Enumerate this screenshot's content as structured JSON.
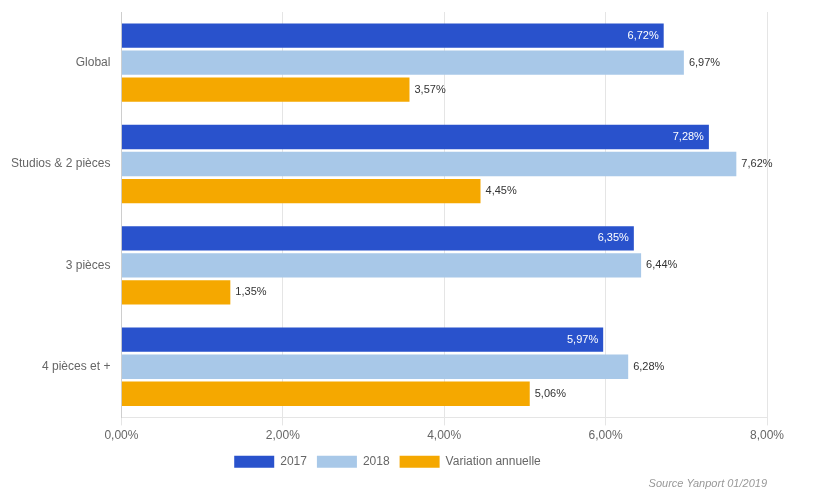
{
  "chart_data": {
    "type": "bar",
    "orientation": "horizontal",
    "categories": [
      "4 pièces et +",
      "3 pièces",
      "Studios & 2 pièces",
      "Global"
    ],
    "series": [
      {
        "name": "2017",
        "color": "#2952cc",
        "values": [
          5.97,
          6.35,
          7.28,
          6.72
        ],
        "value_labels": [
          "5,97%",
          "6,35%",
          "7,28%",
          "6,72%"
        ]
      },
      {
        "name": "2018",
        "color": "#a8c8e8",
        "values": [
          6.28,
          6.44,
          7.62,
          6.97
        ],
        "value_labels": [
          "6,28%",
          "6,44%",
          "7,62%",
          "6,97%"
        ]
      },
      {
        "name": "Variation annuelle",
        "color": "#f5a800",
        "values": [
          5.06,
          1.35,
          4.45,
          3.57
        ],
        "value_labels": [
          "5,06%",
          "1,35%",
          "4,45%",
          "3,57%"
        ]
      }
    ],
    "xlim": [
      0,
      8.0
    ],
    "xticks": [
      {
        "value": 0,
        "label": "0,00%"
      },
      {
        "value": 2.0,
        "label": "2,00%"
      },
      {
        "value": 4.0,
        "label": "4,00%"
      },
      {
        "value": 6.0,
        "label": "6,00%"
      },
      {
        "value": 8.0,
        "label": "8,00%"
      }
    ],
    "grid": true,
    "legend": "bottom",
    "data_labels": true,
    "annotations": [
      "Source Yanport 01/2019"
    ]
  }
}
